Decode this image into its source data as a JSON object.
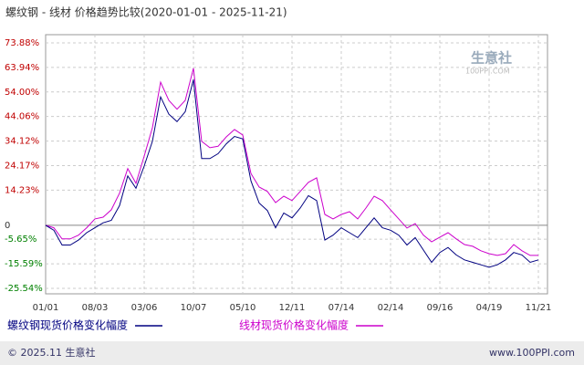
{
  "chart_data": {
    "type": "line",
    "title": "螺纹钢 - 线材 价格趋势比较(2020-01-01 - 2025-11-21)",
    "categories": [
      "01/01",
      null,
      null,
      null,
      null,
      null,
      "08/03",
      null,
      null,
      null,
      null,
      null,
      "03/06",
      null,
      null,
      null,
      null,
      null,
      "10/07",
      null,
      null,
      null,
      null,
      null,
      "05/10",
      null,
      null,
      null,
      null,
      null,
      "12/11",
      null,
      null,
      null,
      null,
      null,
      "07/14",
      null,
      null,
      null,
      null,
      null,
      "02/14",
      null,
      null,
      null,
      null,
      null,
      "09/16",
      null,
      null,
      null,
      null,
      null,
      "04/19",
      null,
      null,
      null,
      null,
      null,
      "11/21"
    ],
    "series": [
      {
        "name": "螺纹钢现货价格变化幅度",
        "color": "#000080",
        "values": [
          0,
          -2,
          -8,
          -8,
          -6,
          -3,
          -1,
          1,
          2,
          8,
          20,
          15,
          24,
          34,
          52,
          45,
          42,
          46,
          59,
          27,
          27,
          29,
          33,
          36,
          35,
          18,
          9,
          6,
          -1,
          5,
          3,
          7,
          12,
          10,
          -6,
          -4,
          -1,
          -3,
          -5,
          -1,
          3,
          -1,
          -2,
          -4,
          -8,
          -5,
          -10,
          -15,
          -11,
          -9,
          -12,
          -14,
          -15,
          -16,
          -17,
          -16,
          -14,
          -11,
          -12,
          -15,
          -14
        ]
      },
      {
        "name": "线材现货价格变化幅度",
        "color": "#cc00cc",
        "values": [
          0,
          -1,
          -5.5,
          -5.5,
          -4,
          -1,
          2.6,
          3.3,
          6.3,
          13,
          23,
          17,
          28,
          39.5,
          58,
          50.6,
          47,
          50.6,
          63.6,
          34,
          31.4,
          32,
          35.8,
          38.8,
          36.6,
          21,
          15.5,
          13.7,
          9.2,
          11.8,
          10,
          13.7,
          17.4,
          19.2,
          4.4,
          2.6,
          4.4,
          5.5,
          2.6,
          7,
          11.8,
          10,
          6.3,
          2.6,
          -1.1,
          0.7,
          -4,
          -6.7,
          -4.8,
          -3,
          -5.5,
          -7.8,
          -8.5,
          -10.3,
          -11.5,
          -12.2,
          -11.5,
          -7.8,
          -10.3,
          -12.2,
          -12.2
        ]
      }
    ],
    "ylim": [
      -25.54,
      73.88
    ],
    "yticks": [
      {
        "value": 73.88,
        "label": "73.88%"
      },
      {
        "value": 63.94,
        "label": "63.94%"
      },
      {
        "value": 54.0,
        "label": "54.00%"
      },
      {
        "value": 44.06,
        "label": "44.06%"
      },
      {
        "value": 34.12,
        "label": "34.12%"
      },
      {
        "value": 24.17,
        "label": "24.17%"
      },
      {
        "value": 14.23,
        "label": "14.23%"
      },
      0,
      {
        "value": -5.65,
        "label": "-5.65%"
      },
      {
        "value": -15.59,
        "label": "-15.59%"
      },
      {
        "value": -25.54,
        "label": "-25.54%"
      }
    ],
    "grid": true,
    "annotations": [
      "生意社",
      "100PPI.COM"
    ],
    "footer": [
      "© 2025.11 生意社",
      "www.100PPI.com"
    ]
  }
}
